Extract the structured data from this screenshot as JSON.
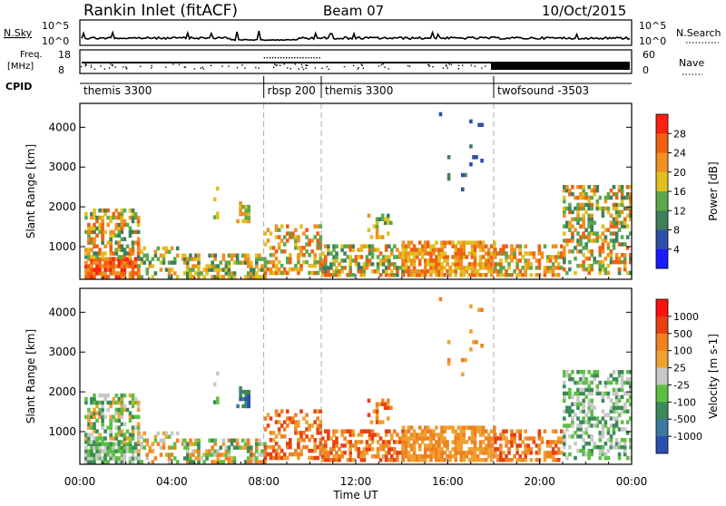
{
  "header": {
    "station": "Rankin Inlet (fitACF)",
    "beam": "Beam 07",
    "date": "10/Oct/2015"
  },
  "top_panels": {
    "nsky_label": "N.Sky",
    "nsky_ticks": [
      "10^5",
      "10^0"
    ],
    "nsearch_label": "N.Search",
    "nsearch_ticks": [
      "10^5",
      "10^0"
    ],
    "freq_label": "Freq.",
    "freq_unit": "[MHz]",
    "freq_ticks": [
      "18",
      "8"
    ],
    "nave_label": "Nave",
    "nave_ticks": [
      "60",
      "0"
    ],
    "cpid_label": "CPID"
  },
  "cpid_segments": [
    {
      "name": "themis 3300",
      "start_hour": 0.0,
      "end_hour": 8.0
    },
    {
      "name": "rbsp 200",
      "start_hour": 8.0,
      "end_hour": 10.5
    },
    {
      "name": "themis 3300",
      "start_hour": 10.5,
      "end_hour": 18.0
    },
    {
      "name": "twofsound -3503",
      "start_hour": 18.0,
      "end_hour": 24.0
    }
  ],
  "colors": {
    "power_scale": [
      "#1a1aff",
      "#2e4fa8",
      "#3f7f5a",
      "#5aa84a",
      "#e0c020",
      "#f09020",
      "#f06010",
      "#ff2010"
    ],
    "velocity_scale": [
      "#2a4fb0",
      "#3a7aa0",
      "#3c8a58",
      "#5cc040",
      "#c8c8c8",
      "#f0a030",
      "#f08020",
      "#e84010",
      "#ff1010"
    ]
  },
  "chart_data": [
    {
      "type": "heatmap",
      "name": "Power",
      "ylabel": "Slant Range [km]",
      "yticks": [
        1000,
        2000,
        3000,
        4000
      ],
      "ylim": [
        180,
        4600
      ],
      "xlabel": "Time UT",
      "xticks": [
        "00:00",
        "04:00",
        "08:00",
        "12:00",
        "16:00",
        "20:00",
        "00:00"
      ],
      "xlim": [
        0,
        24
      ],
      "colorbar_label": "Power [dB]",
      "colorbar_ticks": [
        "4",
        "8",
        "12",
        "16",
        "20",
        "24",
        "28"
      ],
      "colorbar_range": [
        0,
        32
      ],
      "vertical_markers_hours": [
        8.0,
        10.5,
        18.0
      ]
    },
    {
      "type": "heatmap",
      "name": "Velocity",
      "ylabel": "Slant Range [km]",
      "yticks": [
        1000,
        2000,
        3000,
        4000
      ],
      "ylim": [
        180,
        4600
      ],
      "xlabel": "Time UT",
      "xticks": [
        "00:00",
        "04:00",
        "08:00",
        "12:00",
        "16:00",
        "20:00",
        "00:00"
      ],
      "xlim": [
        0,
        24
      ],
      "colorbar_label": "Velocity [m s-1]",
      "colorbar_ticks": [
        "1000",
        "500",
        "100",
        "25",
        "-25",
        "-100",
        "-500",
        "-1000"
      ],
      "vertical_markers_hours": [
        8.0,
        10.5,
        18.0
      ]
    }
  ],
  "footer": {
    "time_label": "Time UT"
  }
}
